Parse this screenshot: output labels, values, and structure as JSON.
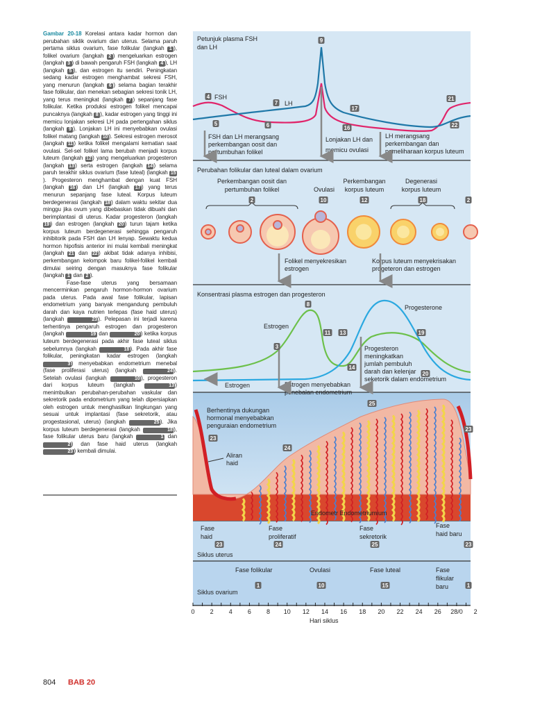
{
  "caption": {
    "label": "Gambar 20-18",
    "paragraph1": [
      " Korelasi antara kadar hormon dan perubahan siklik ovarium dan uterus. Selama paruh pertama siklus ovarium, fase folikular (langkah ",
      1,
      "), folikel ovarium (langkah ",
      2,
      ") mengeluarkan estrogen (langkah ",
      3,
      ") di bawah pengaruh FSH (langkah ",
      4,
      "), LH (langkah ",
      5,
      "), dan estrogen itu sendiri. Peningkatan sedang kadar estrogen menghambat sekresi FSH, yang menurun (langkah ",
      6,
      ") selama bagian terakhir fase folikular, dan menekan sebagian sekresi tonik LH, yang terus meningkat (langkah ",
      7,
      ") sepanjang fase folikular. Ketika produksi estrogen folikel mencapai puncaknya (langkah ",
      8,
      "), kadar estrogen yang tinggi ini memicu lonjakan sekresi LH pada pertengahan siklus (langkah ",
      9,
      "). Lonjakan LH ini menyebabkan ovulasi folikel matang (langkah ",
      10,
      "). Sekresi estrogen merosot (langkah ",
      11,
      ") ketika folikel mengalami kematian saat ovulasi. Sel-sel folikel lama berubah menjadi korpus luteum (langkah ",
      12,
      ") yang mengeluarkan progesteron (langkah ",
      13,
      ") serta estrogen (langkah ",
      14,
      ") selama paruh terakhir siklus ovarium (fase luteal) (langkah ",
      15,
      "). Progesteron menghambat dengan kuat FSH (langkah ",
      16,
      ") dan LH (langkah ",
      17,
      ") yang terus menurun sepanjang fase luteal. Korpus luteum berdegenerasi (langkah ",
      18,
      ") dalam waktu sekitar dua minggu jika ovum yang dibebaskan tidak dibuahi dan berimplantasi di uterus. Kadar progesteron (langkah ",
      19,
      ") dan estrogen (langkah ",
      20,
      ") turun tajam ketika korpus luteum berdegenerasi sehingga pengaruh inhibitorik pada FSH dan LH lenyap. Sewaktu kedua hormon hipofisis anterior ini mulai kembali meningkat (langkah ",
      21,
      " dan ",
      22,
      ") akibat tidak adanya inhibisi, perkembangan kelompok baru folikel-folikel kembali dimulai seiring dengan masuknya fase folikular (langkah ",
      1,
      " dan ",
      2,
      ")."
    ],
    "paragraph2": [
      "Fase-fase uterus yang bersamaan mencerminkan pengaruh hormon-hormon ovarium pada uterus. Pada awal fase folikular, lapisan endometrium yang banyak mengandung pembuluh darah dan kaya nutrien terlepas (fase haid uterus) (langkah ",
      23,
      "). Pelepasan ini terjadi karena terhentinya pengaruh estrogen dan progesteron (langkah ",
      19,
      " dan ",
      20,
      ") ketika korpus luteum berdegenerasi pada akhir fase luteal siklus sebelumnya (langkah ",
      18,
      "). Pada akhir fase folikular, peningkatan kadar estrogen (langkah ",
      3,
      ") menyebabkan endometrium menebal (fase proliferasi uterus) (langkah ",
      24,
      "). Setelah ovulasi (langkah ",
      10,
      "), progesteron dari korpus luteum (langkah ",
      13,
      ") menimbulkan perubahan-perubahan vaskular dan sekretorik pada endometrium yang telah dipersiapkan oleh estrogen untuk menghasilkan lingkungan yang sesuai untuk implantasi (fase sekretorik, atau progestasional, uterus) (langkah ",
      25,
      "). Jika korpus luteum berdegenerasi (langkah ",
      18,
      "), fase folikular uterus baru (langkah ",
      1,
      " dan ",
      2,
      ") dan fase haid uterus (langkah ",
      23,
      ") kembali dimulai."
    ]
  },
  "figure": {
    "panel1": {
      "title_l1": "Petunjuk plasma FSH",
      "title_l2": "dan LH",
      "fsh": "FSH",
      "lh": "LH",
      "note1": [
        "FSH dan LH merangsang",
        "perkembangan oosit dan",
        "pertumbuhan folikel"
      ],
      "note2": [
        "Lonjakan LH dan",
        "memicu ovulasi"
      ],
      "note3": [
        "LH merangsang",
        "perkembangan dan",
        "pemeliharaan korpus luteum"
      ],
      "badges": [
        "9",
        "4",
        "7",
        "5",
        "6",
        "16",
        "17",
        "21",
        "22"
      ]
    },
    "panel2": {
      "title": "Perubahan folikular dan luteal dalam ovarium",
      "stage1": [
        "Perkembangan oosit dan",
        "pertumbuhan folikel"
      ],
      "stage2": "Ovulasi",
      "stage3": [
        "Perkembangan",
        "korpus luteum"
      ],
      "stage4": [
        "Degenerasi",
        "korpus luteum"
      ],
      "note1": [
        "Folikel menyekresikan",
        "estrogen"
      ],
      "note2": [
        "Korpus luteum menyekrisakan",
        "progeteron dan estrogen"
      ],
      "badges": [
        "2",
        "10",
        "12",
        "18",
        "2"
      ]
    },
    "panel3": {
      "title": "Konsentrasi plasma estrogen dan progesteron",
      "estrogen": "Estrogen",
      "progesterone": "Progesterone",
      "estrogen_bottom": "Estrogen",
      "note1": [
        "Estrogen menyebabkan",
        "penebalan endometrium"
      ],
      "note2": [
        "Progesteron",
        "meningkatkan",
        "jumlah pembuluh",
        "darah dan kelenjar",
        "seketorik dalam endometrium"
      ],
      "badges": [
        "8",
        "11",
        "13",
        "3",
        "14",
        "19",
        "20"
      ]
    },
    "panel4": {
      "note1": [
        "Berhentinya dukungan",
        "hormonal menyebabkan",
        "penguraian endometrium"
      ],
      "flow": [
        "Aliran",
        "haid"
      ],
      "layer": "Endometr Endometriumium",
      "badges": [
        "25",
        "23",
        "24",
        "23"
      ]
    },
    "uterine": {
      "title": "Siklus uterus",
      "phases": [
        [
          "Fase",
          "haid"
        ],
        [
          "Fase",
          "proliferatif"
        ],
        [
          "Fase",
          "sekretorik"
        ],
        [
          "Fase",
          "haid baru"
        ]
      ],
      "badges": [
        "23",
        "24",
        "25",
        "23"
      ]
    },
    "ovarian": {
      "title": "Siklus ovarium",
      "phases": [
        [
          "Fase folikular"
        ],
        [
          "Ovulasi"
        ],
        [
          "Fase luteal"
        ],
        [
          "Fase",
          "flikular",
          "baru"
        ]
      ],
      "badges": [
        "1",
        "10",
        "15",
        "1"
      ]
    },
    "axis": {
      "label": "Hari siklus",
      "ticks": [
        "0",
        "2",
        "4",
        "6",
        "8",
        "10",
        "12",
        "14",
        "16",
        "18",
        "20",
        "22",
        "24",
        "26",
        "28/0",
        "2"
      ]
    },
    "colors": {
      "fsh": "#e0246a",
      "lh": "#1f78a8",
      "estrogen": "#6cc04a",
      "progesterone": "#2ba8e0",
      "badge": "#666666",
      "panel": "#d6e7f4",
      "caption": "#1a8aa0",
      "chapter": "#d0312d"
    }
  },
  "footer": {
    "page": "804",
    "chapter": "BAB 20"
  }
}
